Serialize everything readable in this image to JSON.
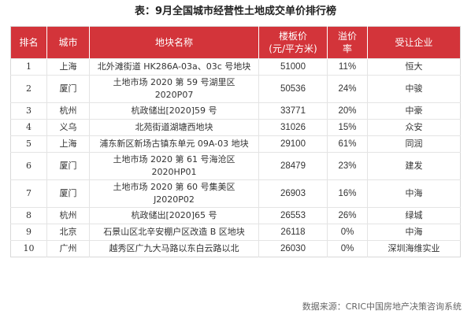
{
  "title": "表：9月全国城市经营性土地成交单价排行榜",
  "headers": {
    "rank": "排名",
    "city": "城市",
    "plot": "地块名称",
    "price_line1": "楼板价",
    "price_line2": "(元/平方米)",
    "premium_line1": "溢价",
    "premium_line2": "率",
    "buyer": "受让企业"
  },
  "rows": [
    {
      "rank": "1",
      "city": "上海",
      "plot_line1": "北外滩街道 HK286A-03a、03c 号地块",
      "plot_line2": "",
      "price": "51000",
      "premium": "11%",
      "buyer": "恒大"
    },
    {
      "rank": "2",
      "city": "厦门",
      "plot_line1": "土地市场 2020 第 59 号湖里区",
      "plot_line2": "2020P07",
      "price": "50536",
      "premium": "24%",
      "buyer": "中骏"
    },
    {
      "rank": "3",
      "city": "杭州",
      "plot_line1": "杭政储出[2020]59 号",
      "plot_line2": "",
      "price": "33771",
      "premium": "20%",
      "buyer": "中豪"
    },
    {
      "rank": "4",
      "city": "义乌",
      "plot_line1": "北苑街道湖塘西地块",
      "plot_line2": "",
      "price": "31026",
      "premium": "15%",
      "buyer": "众安"
    },
    {
      "rank": "5",
      "city": "上海",
      "plot_line1": "浦东新区新场古镇东单元 09A-03 地块",
      "plot_line2": "",
      "price": "29100",
      "premium": "61%",
      "buyer": "同润"
    },
    {
      "rank": "6",
      "city": "厦门",
      "plot_line1": "土地市场 2020 第 61 号海沧区",
      "plot_line2": "2020HP01",
      "price": "28479",
      "premium": "23%",
      "buyer": "建发"
    },
    {
      "rank": "7",
      "city": "厦门",
      "plot_line1": "土地市场 2020 第 60 号集美区",
      "plot_line2": "J2020P02",
      "price": "26903",
      "premium": "16%",
      "buyer": "中海"
    },
    {
      "rank": "8",
      "city": "杭州",
      "plot_line1": "杭政储出[2020]65 号",
      "plot_line2": "",
      "price": "26553",
      "premium": "26%",
      "buyer": "绿城"
    },
    {
      "rank": "9",
      "city": "北京",
      "plot_line1": "石景山区北辛安棚户区改造 B 区地块",
      "plot_line2": "",
      "price": "26118",
      "premium": "0%",
      "buyer": "中海"
    },
    {
      "rank": "10",
      "city": "广州",
      "plot_line1": "越秀区广九大马路以东白云路以北",
      "plot_line2": "",
      "price": "26030",
      "premium": "0%",
      "buyer": "深圳海维实业"
    }
  ],
  "source": "数据来源：CRIC中国房地产决策咨询系统",
  "colors": {
    "header_bg": "#d3343a",
    "header_text": "#ffffff",
    "grid": "#e4e4e4"
  }
}
